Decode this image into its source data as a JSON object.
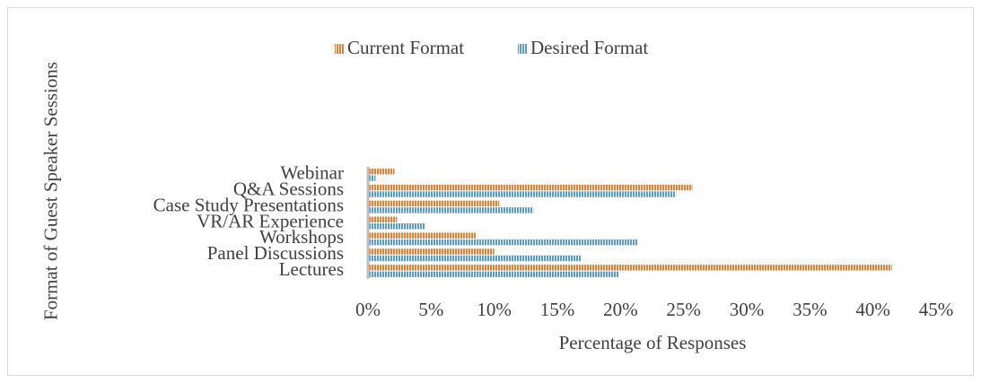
{
  "chart_data": {
    "type": "barh",
    "ylabel": "Format of Guest Speaker Sessions",
    "xlabel": "Percentage of Responses",
    "categories": [
      "Lectures",
      "Panel Discussions",
      "Workshops",
      "VR/AR Experience",
      "Case Study Presentations",
      "Q&A Sessions",
      "Webinar"
    ],
    "series": [
      {
        "name": "Current Format",
        "color": "#ed7d31",
        "values": [
          41.5,
          10.0,
          8.6,
          2.3,
          10.4,
          25.7,
          2.1
        ]
      },
      {
        "name": "Desired Format",
        "color": "#5b9bd5",
        "values": [
          19.9,
          16.9,
          21.4,
          4.5,
          13.1,
          24.4,
          0.6
        ]
      }
    ],
    "xlim": [
      0,
      45
    ],
    "xticks": [
      {
        "value": 0,
        "label": "0%"
      },
      {
        "value": 5,
        "label": "5%"
      },
      {
        "value": 10,
        "label": "10%"
      },
      {
        "value": 15,
        "label": "15%"
      },
      {
        "value": 20,
        "label": "20%"
      },
      {
        "value": 25,
        "label": "25%"
      },
      {
        "value": 30,
        "label": "30%"
      },
      {
        "value": 35,
        "label": "35%"
      },
      {
        "value": 40,
        "label": "40%"
      },
      {
        "value": 45,
        "label": "45%"
      }
    ],
    "legend": "top",
    "grid": false
  }
}
